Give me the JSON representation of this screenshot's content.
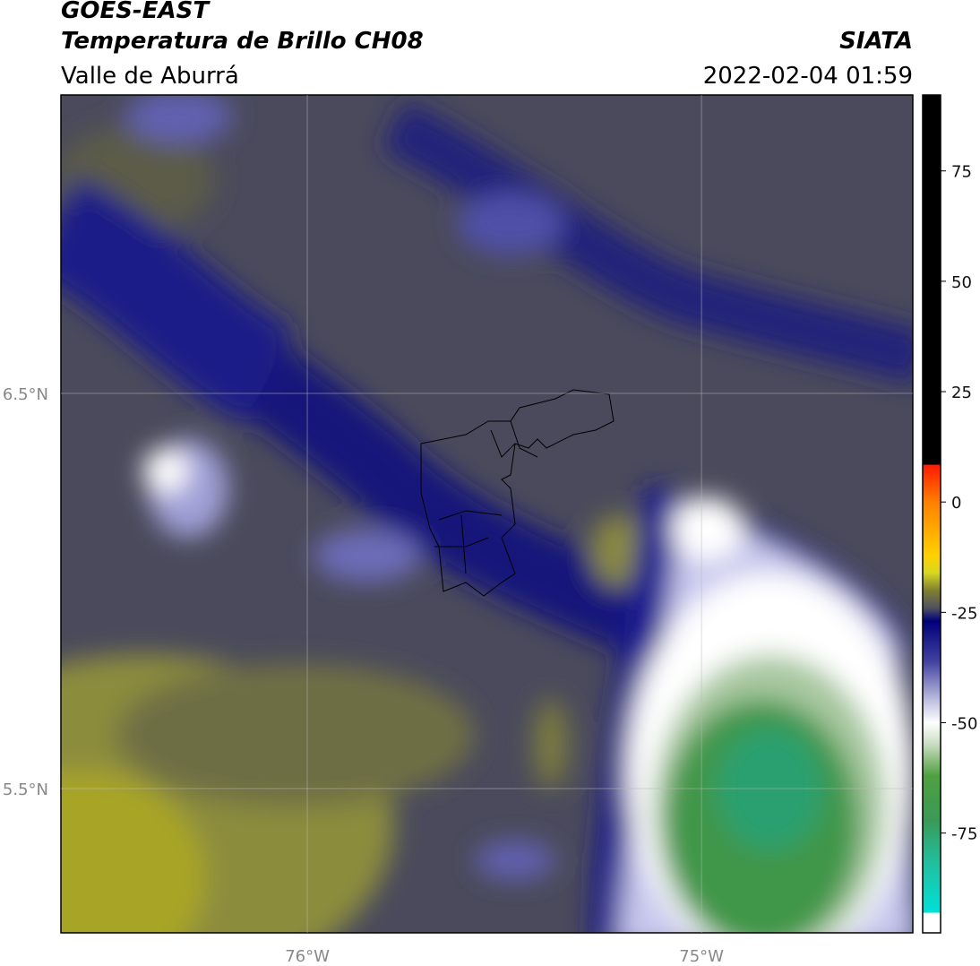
{
  "header": {
    "title": "GOES-EAST",
    "subtitle": "Temperatura de Brillo CH08",
    "region": "Valle de Aburrá",
    "source": "SIATA",
    "datetime": "2022-02-04 01:59"
  },
  "map": {
    "xlim": [
      -76.625,
      -74.464
    ],
    "ylim": [
      5.135,
      7.255
    ],
    "xticks": [
      {
        "value": -76,
        "label": "76°W"
      },
      {
        "value": -75,
        "label": "75°W"
      }
    ],
    "yticks": [
      {
        "value": 6.5,
        "label": "6.5°N"
      },
      {
        "value": 5.5,
        "label": "5.5°N"
      }
    ],
    "grid": true
  },
  "colorbar": {
    "lim": [
      -97.6,
      92.2
    ],
    "ticks": [
      75,
      50,
      25,
      0,
      -25,
      -50,
      -75
    ],
    "stops": [
      {
        "value": 92.2,
        "color": "#000000"
      },
      {
        "value": 8.5,
        "color": "#000000"
      },
      {
        "value": 8.4,
        "color": "#ff1a00"
      },
      {
        "value": 0,
        "color": "#ff8000"
      },
      {
        "value": -12,
        "color": "#ffd000"
      },
      {
        "value": -16,
        "color": "#d8d820"
      },
      {
        "value": -20,
        "color": "#808030"
      },
      {
        "value": -24,
        "color": "#505060"
      },
      {
        "value": -27,
        "color": "#00007a"
      },
      {
        "value": -36,
        "color": "#4040a0"
      },
      {
        "value": -45,
        "color": "#c0c0e0"
      },
      {
        "value": -50,
        "color": "#ffffff"
      },
      {
        "value": -55,
        "color": "#c8dcc0"
      },
      {
        "value": -62,
        "color": "#50a040"
      },
      {
        "value": -72,
        "color": "#3a9a58"
      },
      {
        "value": -82,
        "color": "#20c0a0"
      },
      {
        "value": -93,
        "color": "#00e0d8"
      },
      {
        "value": -93.1,
        "color": "#ffffff"
      },
      {
        "value": -97.6,
        "color": "#ffffff"
      }
    ]
  }
}
